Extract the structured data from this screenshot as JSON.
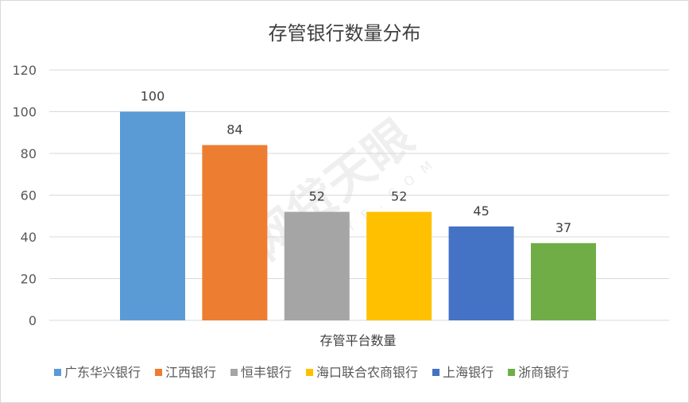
{
  "chart_data": {
    "type": "bar",
    "title": "存管银行数量分布",
    "xlabel": "存管平台数量",
    "ylabel": "",
    "ylim": [
      0,
      120
    ],
    "yticks": [
      0,
      20,
      40,
      60,
      80,
      100,
      120
    ],
    "grid": true,
    "legend_position": "bottom",
    "series": [
      {
        "name": "广东华兴银行",
        "value": 100,
        "color": "#5b9bd5"
      },
      {
        "name": "江西银行",
        "value": 84,
        "color": "#ed7d31"
      },
      {
        "name": "恒丰银行",
        "value": 52,
        "color": "#a5a5a5"
      },
      {
        "name": "海口联合农商银行",
        "value": 52,
        "color": "#ffc000"
      },
      {
        "name": "上海银行",
        "value": 45,
        "color": "#4472c4"
      },
      {
        "name": "浙商银行",
        "value": 37,
        "color": "#70ad47"
      }
    ]
  },
  "watermark": {
    "text": "网贷天眼",
    "sub": "P2PEYE.COM"
  }
}
